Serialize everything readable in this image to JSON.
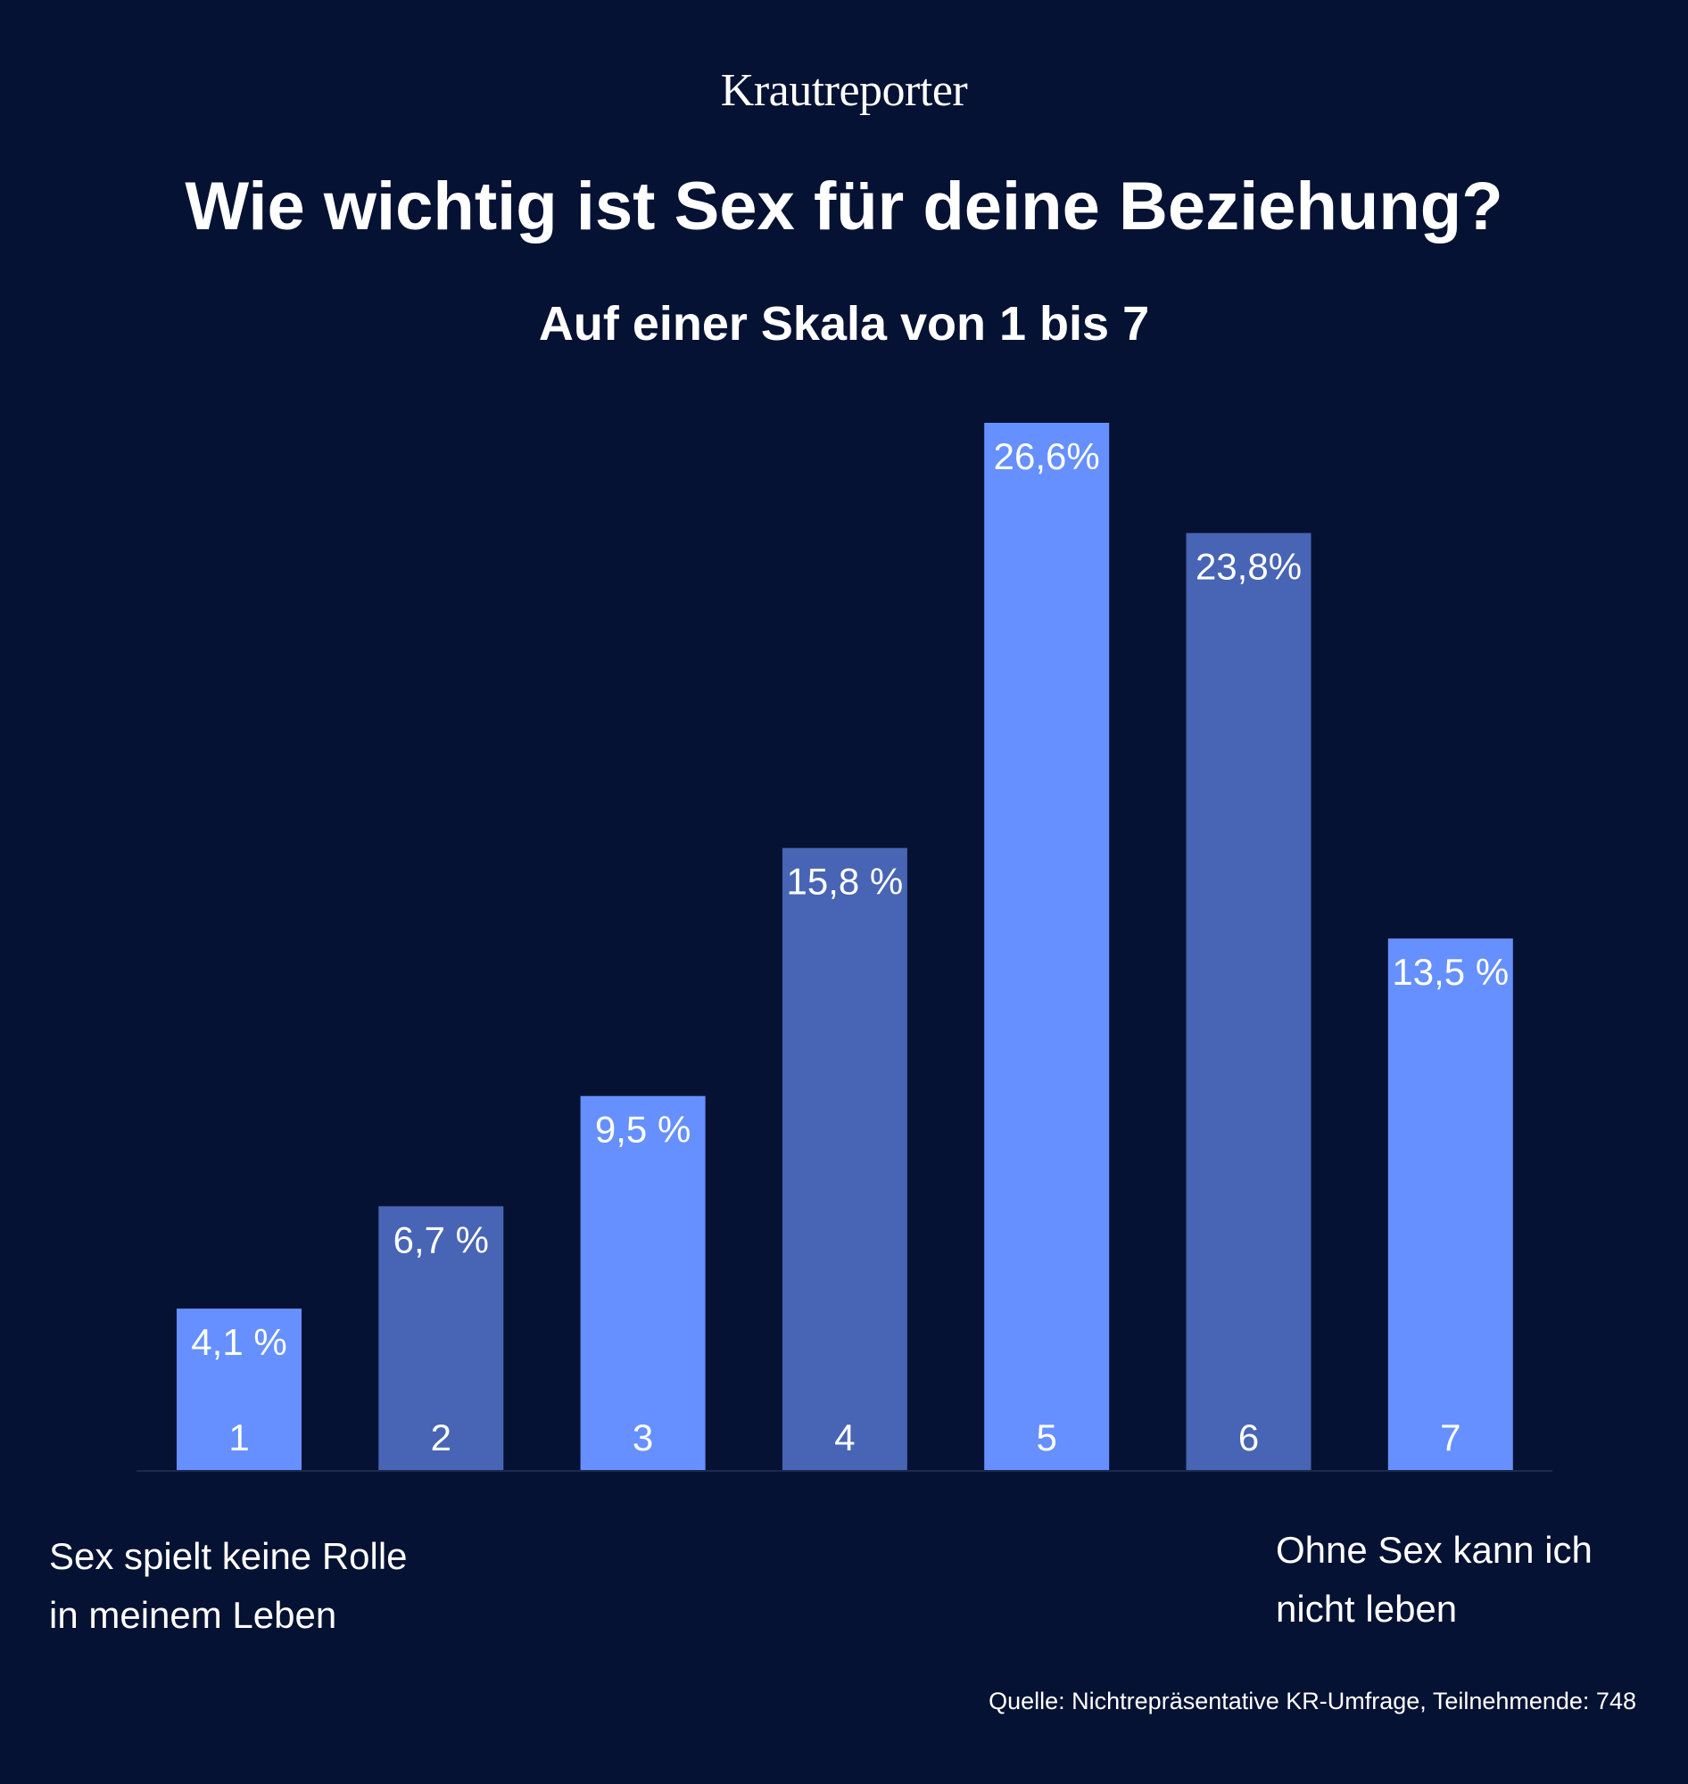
{
  "header": {
    "brand": "Krautreporter",
    "title": "Wie wichtig ist Sex für deine Beziehung?",
    "subtitle": "Auf einer Skala von 1 bis 7"
  },
  "anchors": {
    "low_line1": "Sex spielt keine Rolle",
    "low_line2": "in meinem Leben",
    "high_line1": "Ohne Sex kann ich",
    "high_line2": "nicht leben"
  },
  "footer": {
    "source": "Quelle: Nichtrepräsentative KR-Umfrage, Teilnehmende: 748"
  },
  "colors": {
    "background": "#061233",
    "bar_light": "#6690ff",
    "bar_dark": "#4864b4"
  },
  "chart_data": {
    "type": "bar",
    "categories": [
      "1",
      "2",
      "3",
      "4",
      "5",
      "6",
      "7"
    ],
    "values": [
      4.1,
      6.7,
      9.5,
      15.8,
      26.6,
      23.8,
      13.5
    ],
    "labels": [
      "4,1 %",
      "6,7 %",
      "9,5 %",
      "15,8 %",
      "26,6%",
      "23,8%",
      "13,5 %"
    ],
    "bar_colors": [
      "#6690ff",
      "#4864b4",
      "#6690ff",
      "#4864b4",
      "#6690ff",
      "#4864b4",
      "#6690ff"
    ],
    "title": "Wie wichtig ist Sex für deine Beziehung?",
    "subtitle": "Auf einer Skala von 1 bis 7",
    "xlabel": "",
    "ylabel": "",
    "ylim": [
      0,
      26.6
    ],
    "grid": false,
    "legend": "none"
  }
}
